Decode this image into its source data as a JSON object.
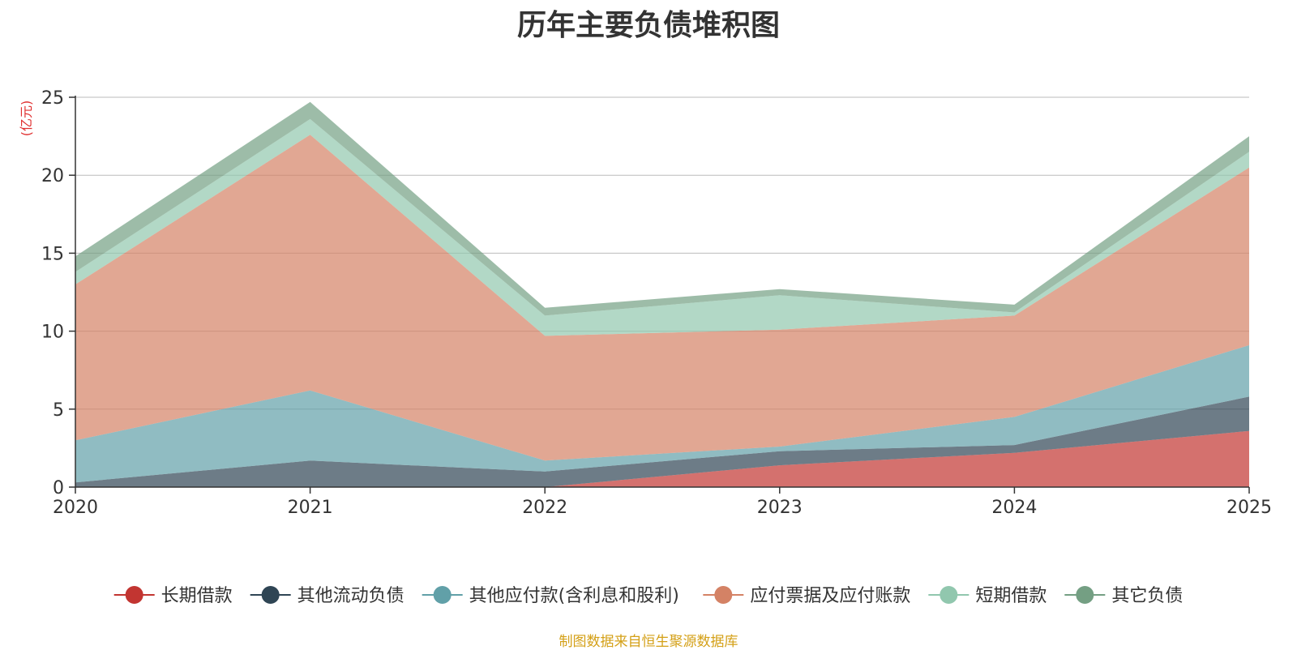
{
  "chart_data": {
    "type": "area",
    "stacked": true,
    "title": "历年主要负债堆积图",
    "ylabel": "(亿元)",
    "xlabel": "",
    "ylim": [
      0,
      25
    ],
    "yticks": [
      0,
      5,
      10,
      15,
      20,
      25
    ],
    "categories": [
      "2020",
      "2021",
      "2022",
      "2023",
      "2024",
      "2025"
    ],
    "grid": true,
    "legend_position": "bottom",
    "series": [
      {
        "name": "长期借款",
        "color": "#c23531",
        "values": [
          0.0,
          0.0,
          0.0,
          1.4,
          2.2,
          3.6
        ]
      },
      {
        "name": "其他流动负债",
        "color": "#2f4554",
        "values": [
          0.3,
          1.7,
          1.0,
          0.9,
          0.5,
          2.2
        ]
      },
      {
        "name": "其他应付款(含利息和股利)",
        "color": "#61a0a8",
        "values": [
          2.7,
          4.5,
          0.7,
          0.3,
          1.8,
          3.3
        ]
      },
      {
        "name": "应付票据及应付账款",
        "color": "#d48265",
        "values": [
          10.0,
          16.4,
          8.0,
          7.5,
          6.5,
          11.4
        ]
      },
      {
        "name": "短期借款",
        "color": "#91c7ae",
        "values": [
          0.8,
          1.0,
          1.3,
          2.2,
          0.2,
          1.0
        ]
      },
      {
        "name": "其它负债",
        "color": "#749f83",
        "values": [
          1.0,
          1.1,
          0.5,
          0.4,
          0.5,
          1.0
        ]
      }
    ]
  },
  "footer": {
    "source": "制图数据来自恒生聚源数据库",
    "source_color": "#d4a017"
  },
  "styles": {
    "ylabel_color": "#e03030",
    "axis_color": "#333333",
    "grid_color": "#bbbbbb"
  }
}
